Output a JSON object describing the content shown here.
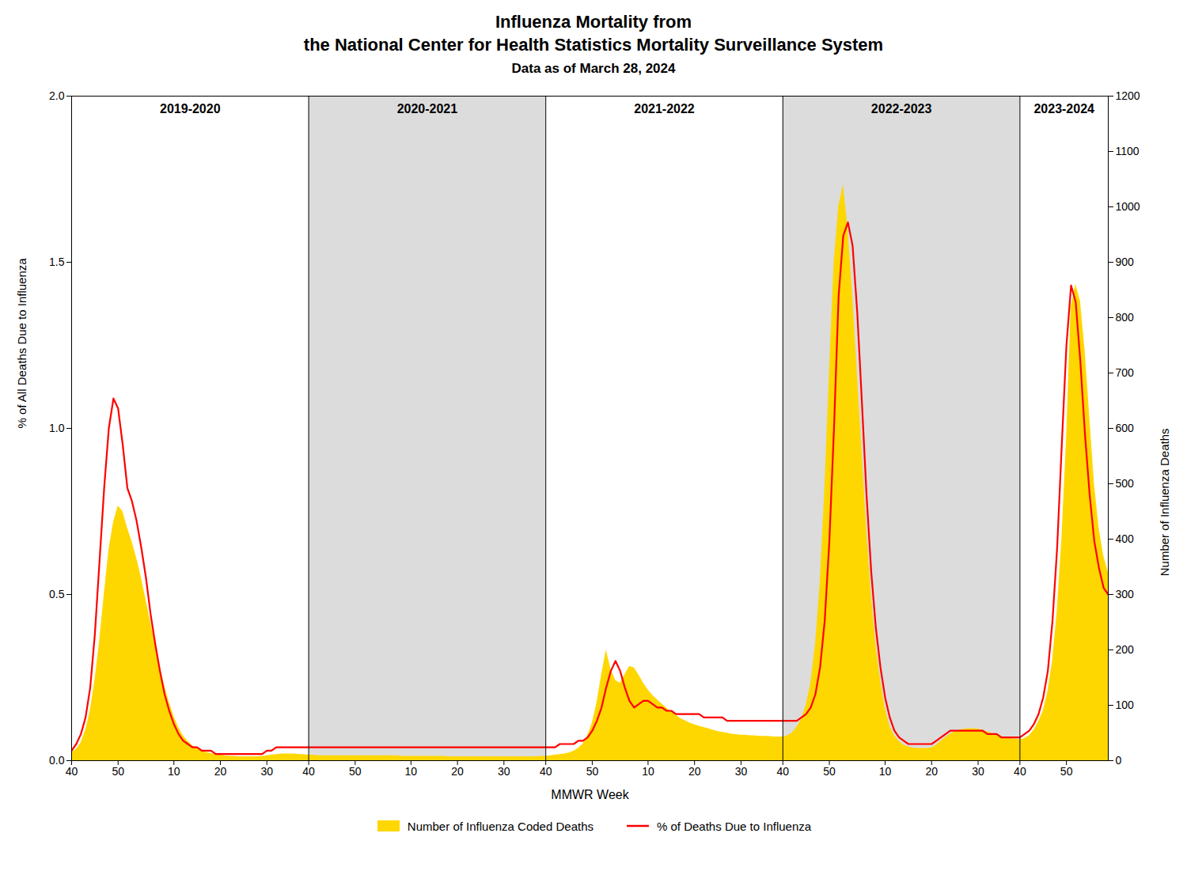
{
  "chart_data": {
    "type": "line",
    "title": "Influenza Mortality from\nthe National Center for Health Statistics Mortality Surveillance System",
    "subtitle": "Data as of March 28, 2024",
    "xlabel": "MMWR Week",
    "ylabel": "% of All Deaths Due to Influenza",
    "y2label": "Number of Influenza Deaths",
    "categories": [
      "40",
      null,
      null,
      null,
      null,
      null,
      null,
      null,
      null,
      null,
      "50",
      null,
      null,
      null,
      null,
      null,
      null,
      null,
      null,
      null,
      null,
      null,
      "10",
      null,
      null,
      null,
      null,
      null,
      null,
      null,
      null,
      null,
      "20",
      null,
      null,
      null,
      null,
      null,
      null,
      null,
      null,
      null,
      "30",
      null,
      null,
      null,
      null,
      null,
      null,
      null,
      null,
      "40",
      null,
      null,
      null,
      null,
      null,
      null,
      null,
      null,
      null,
      "50",
      null,
      null,
      null,
      null,
      null,
      null,
      null,
      null,
      null,
      null,
      null,
      "10",
      null,
      null,
      null,
      null,
      null,
      null,
      null,
      null,
      null,
      "20",
      null,
      null,
      null,
      null,
      null,
      null,
      null,
      null,
      null,
      "30",
      null,
      null,
      null,
      null,
      null,
      null,
      null,
      null,
      "40",
      null,
      null,
      null,
      null,
      null,
      null,
      null,
      null,
      null,
      "50",
      null,
      null,
      null,
      null,
      null,
      null,
      null,
      null,
      null,
      null,
      null,
      "10",
      null,
      null,
      null,
      null,
      null,
      null,
      null,
      null,
      null,
      "20",
      null,
      null,
      null,
      null,
      null,
      null,
      null,
      null,
      null,
      "30",
      null,
      null,
      null,
      null,
      null,
      null,
      null,
      null,
      "40",
      null,
      null,
      null,
      null,
      null,
      null,
      null,
      null,
      null,
      "50",
      null,
      null,
      null,
      null,
      null,
      null,
      null,
      null,
      null,
      null,
      null,
      "10",
      null,
      null,
      null,
      null,
      null,
      null,
      null,
      null,
      null,
      "20",
      null,
      null,
      null,
      null,
      null,
      null,
      null,
      null,
      null,
      "30",
      null,
      null,
      null,
      null,
      null,
      null,
      null,
      null,
      "40",
      null,
      null,
      null,
      null,
      null,
      null,
      null,
      null,
      null,
      "50",
      null,
      null,
      null,
      null,
      null,
      null,
      null,
      null,
      null
    ],
    "ylim": [
      0.0,
      2.0
    ],
    "yticks": [
      {
        "value": 0.0,
        "label": "0.0"
      },
      0.5,
      {
        "value": 1.0,
        "label": "1.0"
      },
      1.5,
      {
        "value": 2.0,
        "label": "2.0"
      }
    ],
    "y2lim": [
      0,
      1200
    ],
    "y2ticks": [
      0,
      100,
      200,
      300,
      400,
      500,
      600,
      700,
      800,
      900,
      1000,
      1100,
      1200
    ],
    "series": [
      {
        "name": "Number of Influenza Coded Deaths",
        "type": "area",
        "axis": "y2",
        "color": "#FFD700",
        "values": [
          15,
          20,
          32,
          55,
          90,
          145,
          215,
          300,
          380,
          430,
          460,
          450,
          420,
          395,
          365,
          330,
          290,
          250,
          210,
          170,
          135,
          105,
          80,
          60,
          45,
          35,
          27,
          22,
          18,
          15,
          13,
          11,
          10,
          9,
          8,
          8,
          7,
          7,
          7,
          7,
          7,
          8,
          9,
          10,
          11,
          12,
          12,
          12,
          12,
          11,
          11,
          10,
          10,
          9,
          9,
          9,
          9,
          9,
          9,
          9,
          9,
          9,
          9,
          9,
          9,
          9,
          9,
          9,
          9,
          9,
          9,
          8,
          8,
          8,
          8,
          8,
          8,
          8,
          8,
          8,
          8,
          7,
          7,
          7,
          7,
          7,
          7,
          7,
          7,
          7,
          7,
          7,
          7,
          7,
          7,
          7,
          7,
          7,
          7,
          7,
          7,
          8,
          8,
          9,
          10,
          11,
          12,
          14,
          17,
          22,
          30,
          45,
          68,
          105,
          155,
          200,
          165,
          145,
          140,
          155,
          170,
          168,
          155,
          140,
          128,
          118,
          110,
          102,
          95,
          88,
          82,
          76,
          72,
          68,
          65,
          62,
          60,
          58,
          55,
          53,
          51,
          50,
          48,
          47,
          46,
          46,
          45,
          45,
          44,
          44,
          44,
          43,
          43,
          43,
          45,
          50,
          60,
          75,
          100,
          140,
          210,
          320,
          490,
          700,
          900,
          1000,
          1040,
          960,
          840,
          700,
          560,
          420,
          300,
          210,
          145,
          95,
          62,
          45,
          35,
          28,
          25,
          23,
          22,
          22,
          22,
          23,
          28,
          35,
          42,
          48,
          52,
          55,
          57,
          58,
          58,
          57,
          55,
          52,
          49,
          47,
          44,
          42,
          40,
          39,
          38,
          40,
          45,
          55,
          70,
          90,
          125,
          180,
          270,
          400,
          580,
          820,
          860,
          830,
          740,
          620,
          500,
          420,
          370,
          340
        ]
      },
      {
        "name": "% of Deaths Due to Influenza",
        "type": "line",
        "color": "#FF0000",
        "values": [
          0.03,
          0.05,
          0.08,
          0.13,
          0.22,
          0.38,
          0.6,
          0.82,
          1.0,
          1.09,
          1.06,
          0.95,
          0.82,
          0.78,
          0.72,
          0.64,
          0.55,
          0.44,
          0.35,
          0.27,
          0.2,
          0.15,
          0.11,
          0.08,
          0.06,
          0.05,
          0.04,
          0.04,
          0.03,
          0.03,
          0.03,
          0.02,
          0.02,
          0.02,
          0.02,
          0.02,
          0.02,
          0.02,
          0.02,
          0.02,
          0.02,
          0.02,
          0.03,
          0.03,
          0.04,
          0.04,
          0.04,
          0.04,
          0.04,
          0.04,
          0.04,
          0.04,
          0.04,
          0.04,
          0.04,
          0.04,
          0.04,
          0.04,
          0.04,
          0.04,
          0.04,
          0.04,
          0.04,
          0.04,
          0.04,
          0.04,
          0.04,
          0.04,
          0.04,
          0.04,
          0.04,
          0.04,
          0.04,
          0.04,
          0.04,
          0.04,
          0.04,
          0.04,
          0.04,
          0.04,
          0.04,
          0.04,
          0.04,
          0.04,
          0.04,
          0.04,
          0.04,
          0.04,
          0.04,
          0.04,
          0.04,
          0.04,
          0.04,
          0.04,
          0.04,
          0.04,
          0.04,
          0.04,
          0.04,
          0.04,
          0.04,
          0.04,
          0.04,
          0.04,
          0.04,
          0.05,
          0.05,
          0.05,
          0.05,
          0.06,
          0.06,
          0.07,
          0.09,
          0.12,
          0.16,
          0.22,
          0.27,
          0.3,
          0.27,
          0.22,
          0.18,
          0.16,
          0.17,
          0.18,
          0.18,
          0.17,
          0.16,
          0.16,
          0.15,
          0.15,
          0.14,
          0.14,
          0.14,
          0.14,
          0.14,
          0.14,
          0.13,
          0.13,
          0.13,
          0.13,
          0.13,
          0.12,
          0.12,
          0.12,
          0.12,
          0.12,
          0.12,
          0.12,
          0.12,
          0.12,
          0.12,
          0.12,
          0.12,
          0.12,
          0.12,
          0.12,
          0.12,
          0.13,
          0.14,
          0.16,
          0.2,
          0.28,
          0.42,
          0.66,
          1.0,
          1.4,
          1.58,
          1.62,
          1.55,
          1.35,
          1.08,
          0.8,
          0.57,
          0.4,
          0.28,
          0.19,
          0.13,
          0.09,
          0.07,
          0.06,
          0.05,
          0.05,
          0.05,
          0.05,
          0.05,
          0.05,
          0.06,
          0.07,
          0.08,
          0.09,
          0.09,
          0.09,
          0.09,
          0.09,
          0.09,
          0.09,
          0.09,
          0.08,
          0.08,
          0.08,
          0.07,
          0.07,
          0.07,
          0.07,
          0.07,
          0.08,
          0.09,
          0.11,
          0.14,
          0.19,
          0.27,
          0.42,
          0.64,
          0.95,
          1.25,
          1.43,
          1.38,
          1.2,
          0.98,
          0.8,
          0.66,
          0.58,
          0.52,
          0.5
        ]
      }
    ],
    "seasons": [
      {
        "label": "2019-2020",
        "start": 0,
        "shaded": false
      },
      {
        "label": "2020-2021",
        "start": 51,
        "shaded": true,
        "color": "#dcdcdc"
      },
      {
        "label": "2021-2022",
        "start": 102,
        "shaded": false
      },
      {
        "label": "2022-2023",
        "start": 153,
        "shaded": true,
        "color": "#dcdcdc"
      },
      {
        "label": "2023-2024",
        "start": 204,
        "shaded": false
      }
    ],
    "legend": "bottom",
    "grid": false
  }
}
